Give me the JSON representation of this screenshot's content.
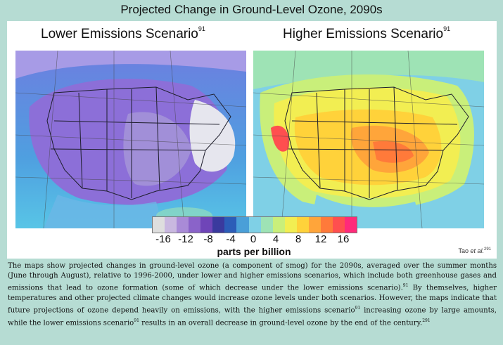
{
  "title": "Projected Change in Ground-Level Ozone, 2090s",
  "left_map": {
    "title": "Lower Emissions Scenario",
    "ref": "91"
  },
  "right_map": {
    "title": "Higher Emissions Scenario",
    "ref": "91"
  },
  "legend": {
    "unit": "parts per billion",
    "ticks": [
      "-16",
      "-12",
      "-8",
      "-4",
      "0",
      "4",
      "8",
      "12",
      "16"
    ],
    "colors": [
      "#dedede",
      "#c9b8e0",
      "#a98bd7",
      "#8a63c9",
      "#6f45b8",
      "#3a3a9e",
      "#2c5db8",
      "#4a9fd8",
      "#7fd0e6",
      "#9ee3b5",
      "#c9ef7a",
      "#f2ee52",
      "#ffd23a",
      "#ffa53a",
      "#ff7a3a",
      "#ff4f4f",
      "#ff2a7a"
    ]
  },
  "credit": {
    "text": "Tao ",
    "italic": "et al.",
    "ref": "291"
  },
  "caption": {
    "t1": "The maps show projected changes in ground-level ozone (a component of smog) for the 2090s, averaged over the summer months (June through August), relative to 1996-2000, under lower and higher emissions scenarios, which include both greenhouse gases and emissions that lead to ozone formation (some of which decrease under the lower emissions scenario).",
    "r1": "91",
    "t2": " By themselves, higher temperatures and other projected climate changes would increase ozone levels under both scenarios. However, the maps indicate that future projections of ozone depend heavily on emissions, with the higher emissions scenario",
    "r2": "91",
    "t3": " increasing ozone by large amounts, while the lower emissions scenario",
    "r3": "91",
    "t4": " results in an overall decrease in ground-level ozone by the end of the century.",
    "r4": "291"
  }
}
